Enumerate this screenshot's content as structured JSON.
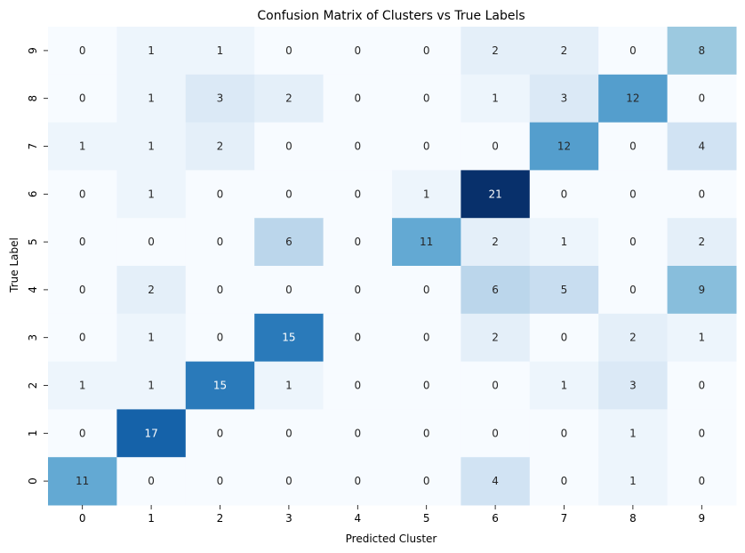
{
  "chart_data": {
    "type": "heatmap",
    "title": "Confusion Matrix of Clusters vs True Labels",
    "xlabel": "Predicted Cluster",
    "ylabel": "True Label",
    "x_categories": [
      "0",
      "1",
      "2",
      "3",
      "4",
      "5",
      "6",
      "7",
      "8",
      "9"
    ],
    "y_categories": [
      "9",
      "8",
      "7",
      "6",
      "5",
      "4",
      "3",
      "2",
      "1",
      "0"
    ],
    "matrix": [
      [
        0,
        1,
        1,
        0,
        0,
        0,
        2,
        2,
        0,
        8
      ],
      [
        0,
        1,
        3,
        2,
        0,
        0,
        1,
        3,
        12,
        0
      ],
      [
        1,
        1,
        2,
        0,
        0,
        0,
        0,
        12,
        0,
        4
      ],
      [
        0,
        1,
        0,
        0,
        0,
        1,
        21,
        0,
        0,
        0
      ],
      [
        0,
        0,
        0,
        6,
        0,
        11,
        2,
        1,
        0,
        2
      ],
      [
        0,
        2,
        0,
        0,
        0,
        0,
        6,
        5,
        0,
        9
      ],
      [
        0,
        1,
        0,
        15,
        0,
        0,
        2,
        0,
        2,
        1
      ],
      [
        1,
        1,
        15,
        1,
        0,
        0,
        0,
        1,
        3,
        0
      ],
      [
        0,
        17,
        0,
        0,
        0,
        0,
        0,
        0,
        1,
        0
      ],
      [
        11,
        0,
        0,
        0,
        0,
        0,
        4,
        0,
        1,
        0
      ]
    ],
    "colormap": "Blues",
    "value_range": [
      0,
      21
    ],
    "colorbar": false,
    "grid": false
  }
}
